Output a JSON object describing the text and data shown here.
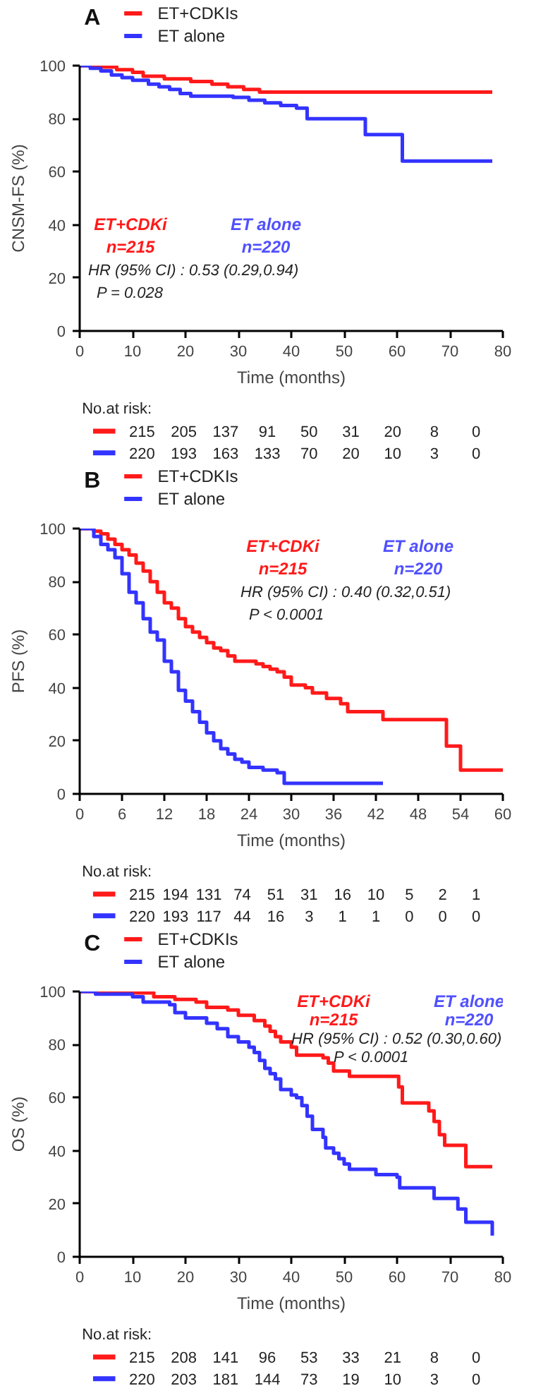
{
  "chart_data": [
    {
      "type": "step",
      "title": "A",
      "xlabel": "Time (months)",
      "ylabel": "CNSM-FS (%)",
      "xlim": [
        0,
        80
      ],
      "ylim": [
        0,
        100
      ],
      "xticks": [
        0,
        10,
        20,
        30,
        40,
        50,
        60,
        70,
        80
      ],
      "yticks": [
        0,
        20,
        40,
        60,
        80,
        100
      ],
      "grid": false,
      "legend": "top left",
      "series": [
        {
          "name": "ET+CDKIs",
          "color": "#ff1a1a",
          "x": [
            0,
            3,
            7,
            10,
            12,
            16,
            21,
            25,
            28,
            31,
            34,
            78
          ],
          "values": [
            100,
            99.5,
            98.5,
            97.5,
            96,
            95,
            94,
            93,
            92,
            91,
            90,
            90
          ]
        },
        {
          "name": "ET alone",
          "color": "#3333ff",
          "x": [
            0,
            2,
            4,
            6,
            8,
            10,
            13,
            15,
            17,
            19,
            21,
            29,
            32,
            35,
            38,
            41,
            43,
            54,
            61,
            78
          ],
          "values": [
            100,
            99,
            98,
            96.5,
            95.5,
            94.5,
            93,
            92,
            91,
            89.5,
            88.5,
            88,
            87,
            86,
            85,
            84,
            80,
            74,
            64,
            64
          ]
        }
      ],
      "annotations": [
        "ET+CDKi",
        "n=215",
        "ET alone",
        "n=220",
        "HR (95% CI) : 0.53 (0.29,0.94)",
        "P = 0.028",
        "No.at risk:",
        "215 205 137 91 50 31 20 8 0",
        "220 193 163 133 70 20 10 3 0"
      ]
    },
    {
      "type": "step",
      "title": "B",
      "xlabel": "Time (months)",
      "ylabel": "PFS (%)",
      "xlim": [
        0,
        60
      ],
      "ylim": [
        0,
        100
      ],
      "xticks": [
        0,
        6,
        12,
        18,
        24,
        30,
        36,
        42,
        48,
        54,
        60
      ],
      "yticks": [
        0,
        20,
        40,
        60,
        80,
        100
      ],
      "grid": false,
      "legend": "top left",
      "series": [
        {
          "name": "ET+CDKIs",
          "color": "#ff1a1a",
          "x": [
            0,
            2,
            3,
            4,
            5,
            6,
            7,
            8,
            9,
            10,
            11,
            12,
            13,
            14,
            15,
            16,
            17,
            18,
            19,
            20,
            21,
            22,
            25,
            26,
            27,
            28,
            29,
            30,
            32,
            33,
            35,
            37,
            38,
            43,
            52,
            54,
            60
          ],
          "values": [
            100,
            99,
            98,
            96,
            94,
            92,
            90,
            87,
            84,
            80,
            76,
            72,
            70,
            66,
            63,
            61,
            59,
            57,
            55,
            54,
            52,
            50,
            49,
            48,
            47,
            46,
            44,
            41,
            40,
            38,
            36,
            34,
            31,
            28,
            18,
            9,
            9
          ]
        },
        {
          "name": "ET alone",
          "color": "#3333ff",
          "x": [
            0,
            2,
            3,
            4,
            5,
            6,
            7,
            8,
            9,
            10,
            11,
            12,
            13,
            14,
            15,
            16,
            17,
            18,
            19,
            20,
            21,
            22,
            23,
            24,
            26,
            28,
            29,
            43
          ],
          "values": [
            100,
            97,
            94,
            92,
            89,
            83,
            76,
            72,
            66,
            61,
            58,
            50,
            46,
            39,
            35,
            31,
            27,
            23,
            20,
            17,
            15,
            13,
            12,
            10,
            9,
            8,
            4,
            4
          ]
        }
      ],
      "annotations": [
        "ET+CDKi",
        "n=215",
        "ET alone",
        "n=220",
        "HR (95% CI) : 0.40 (0.32,0.51)",
        "P < 0.0001",
        "No.at risk:",
        "215 194 131 74 51 31 16 10 5 2 1",
        "220 193 117 44 16 3 1 1 0 0 0"
      ]
    },
    {
      "type": "step",
      "title": "C",
      "xlabel": "Time (months)",
      "ylabel": "OS (%)",
      "xlim": [
        0,
        80
      ],
      "ylim": [
        0,
        100
      ],
      "xticks": [
        0,
        10,
        20,
        30,
        40,
        50,
        60,
        70,
        80
      ],
      "yticks": [
        0,
        20,
        40,
        60,
        80,
        100
      ],
      "grid": false,
      "legend": "top left",
      "series": [
        {
          "name": "ET+CDKIs",
          "color": "#ff1a1a",
          "x": [
            0,
            10,
            14,
            18,
            22,
            24,
            28,
            30,
            33,
            35,
            36,
            37,
            38,
            40,
            41,
            46,
            47,
            48,
            51,
            60,
            60.3,
            61,
            65,
            66,
            67,
            68,
            69,
            72,
            73,
            78
          ],
          "values": [
            100,
            99.5,
            98,
            97,
            96,
            94,
            93,
            91,
            89,
            87,
            85,
            83,
            81,
            79,
            76,
            75,
            73,
            70,
            68,
            68,
            64,
            58,
            58,
            55,
            51,
            46,
            42,
            42,
            34,
            34
          ]
        },
        {
          "name": "ET alone",
          "color": "#3333ff",
          "x": [
            0,
            3,
            10,
            12,
            17,
            18,
            20,
            24,
            26,
            28,
            30,
            32,
            33,
            34,
            35,
            36,
            37,
            38,
            40,
            41,
            42,
            43,
            44,
            46,
            46.5,
            48,
            49,
            50,
            51,
            56,
            60,
            60.5,
            66,
            67,
            71,
            71.5,
            73,
            77,
            78
          ],
          "values": [
            100,
            99,
            98,
            96,
            95,
            92,
            90,
            88,
            86,
            83,
            81,
            79,
            77,
            74,
            71,
            69,
            67,
            63,
            61,
            60,
            57,
            53,
            48,
            45,
            41,
            39,
            37,
            35,
            33,
            31,
            30,
            26,
            26,
            22,
            22,
            18,
            13,
            13,
            8
          ]
        }
      ],
      "annotations": [
        "ET+CDKi",
        "n=215",
        "ET alone",
        "n=220",
        "HR (95% CI) : 0.52 (0.30,0.60)",
        "P < 0.0001",
        "No.at risk:",
        "215 208 141 96 53 33 21 8 0",
        "220 203 181 144 73 19 10 3 0"
      ]
    }
  ]
}
